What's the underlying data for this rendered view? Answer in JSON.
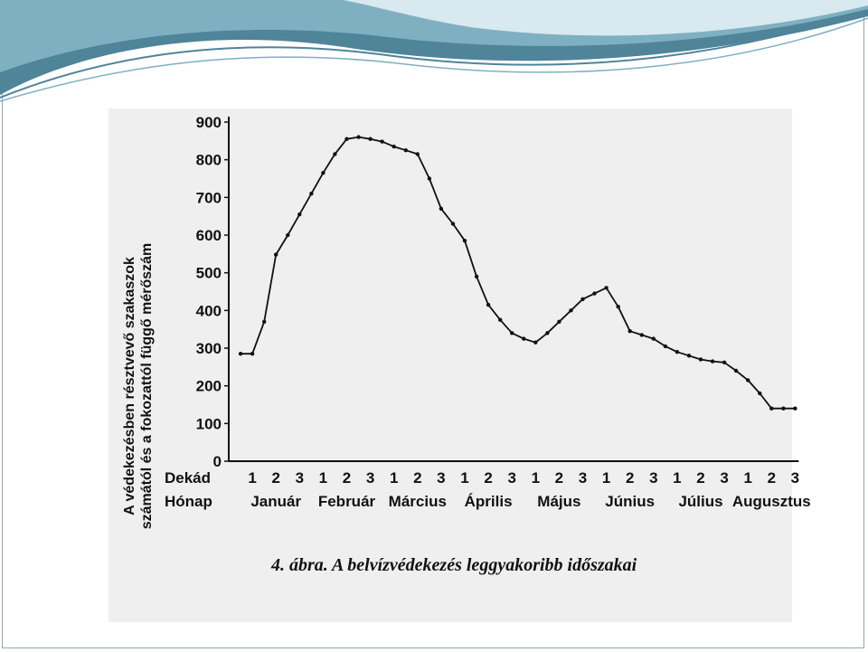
{
  "colors": {
    "banner_dark": "#4f8499",
    "banner_mid": "#7fb0c2",
    "banner_light": "#d8e9ef",
    "scan_background": "#efefef",
    "ink": "#111111"
  },
  "chart_data": {
    "type": "line",
    "title": "",
    "caption": "4. ábra. A belvízvédekezés leggyakoribb időszakai",
    "ylabel_line1": "A védekezésben résztvevő szakaszok",
    "ylabel_line2": "számától és a fokozattól függő mérőszám",
    "ylim": [
      0,
      900
    ],
    "yticks": [
      "0",
      "100",
      "200",
      "300",
      "400",
      "500",
      "600",
      "700",
      "800",
      "900"
    ],
    "row_labels": {
      "decade": "Dekád",
      "month": "Hónap"
    },
    "decades": [
      "1",
      "2",
      "3",
      "1",
      "2",
      "3",
      "1",
      "2",
      "3",
      "1",
      "2",
      "3",
      "1",
      "2",
      "3",
      "1",
      "2",
      "3",
      "1",
      "2",
      "3",
      "1",
      "2",
      "3"
    ],
    "months": [
      "Január",
      "Február",
      "Március",
      "Április",
      "Május",
      "Június",
      "Július",
      "Augusztus"
    ],
    "series": [
      {
        "x": [
          0.5,
          1,
          1.5,
          2,
          2.5,
          3,
          3.5,
          4,
          4.5,
          5,
          5.5,
          6,
          6.5,
          7,
          7.5,
          8,
          8.5,
          9,
          9.5,
          10,
          10.5,
          11,
          11.5,
          12,
          12.5,
          13,
          13.5,
          14,
          14.5,
          15,
          15.5,
          16,
          16.5,
          17,
          17.5,
          18,
          18.5,
          19,
          19.5,
          20,
          20.5,
          21,
          21.5,
          22,
          22.5,
          23,
          23.5,
          24
        ],
        "values": [
          285,
          285,
          370,
          548,
          600,
          655,
          710,
          765,
          815,
          855,
          860,
          855,
          848,
          835,
          825,
          815,
          750,
          670,
          630,
          585,
          490,
          415,
          375,
          340,
          325,
          315,
          340,
          370,
          400,
          430,
          445,
          460,
          410,
          345,
          335,
          325,
          305,
          290,
          280,
          270,
          265,
          262,
          240,
          215,
          180,
          140,
          140,
          140
        ]
      }
    ]
  }
}
